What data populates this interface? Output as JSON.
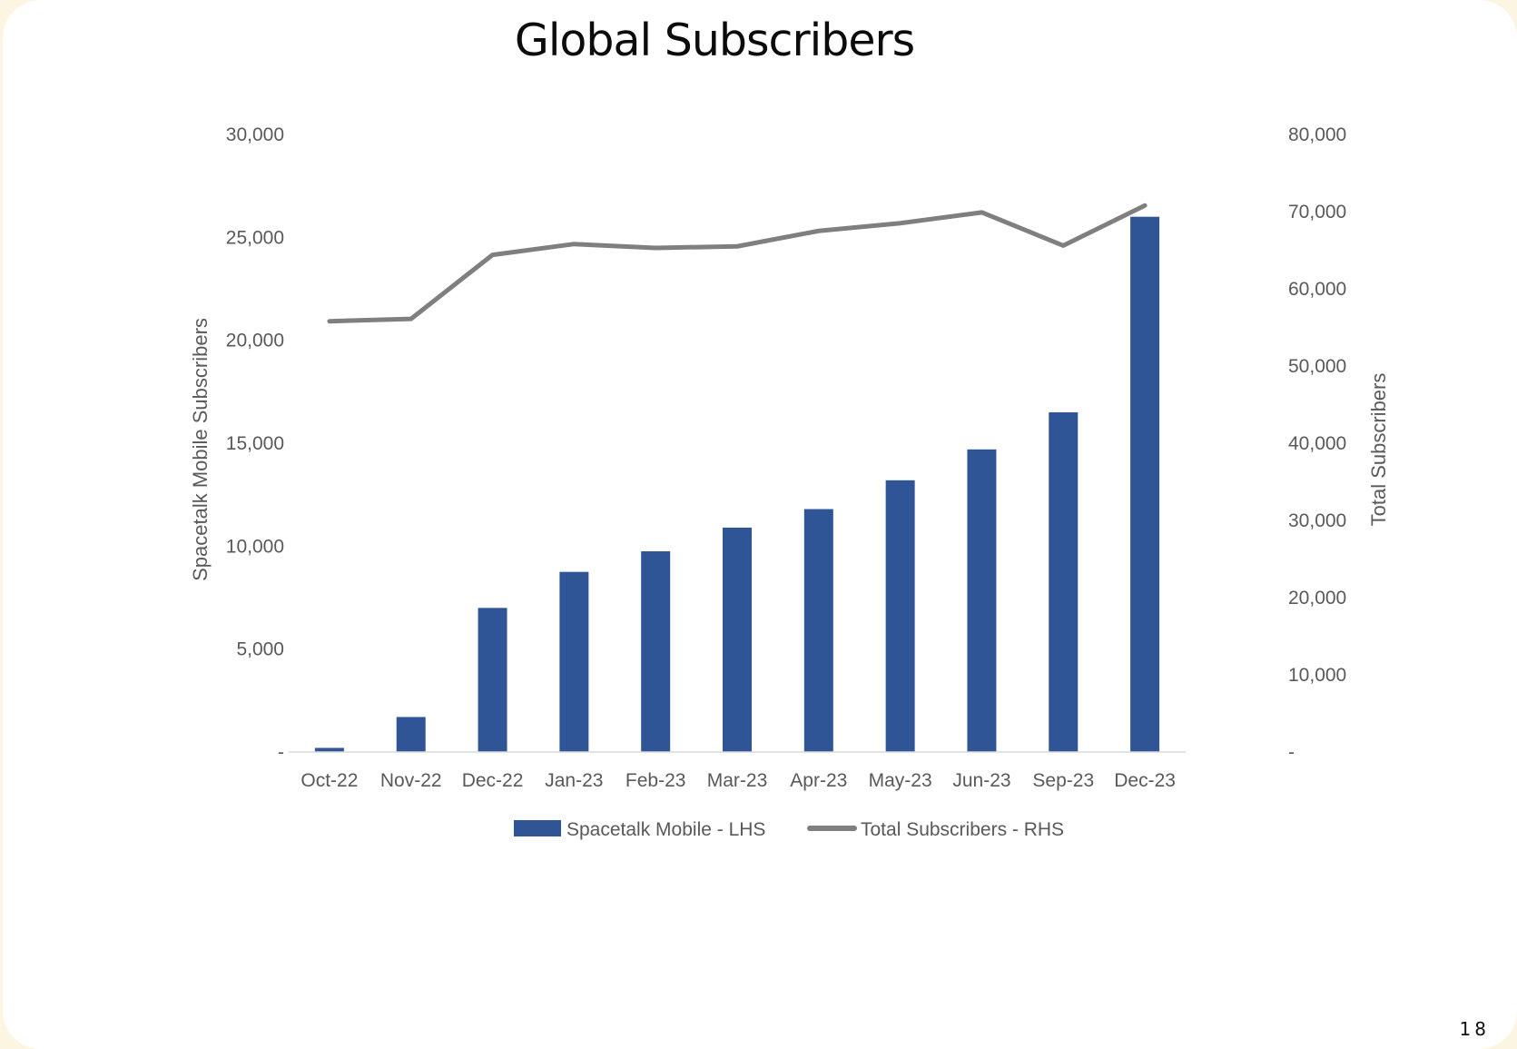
{
  "slide": {
    "title": "Global Subscribers",
    "page_number": "18"
  },
  "colors": {
    "bar": "#2f5597",
    "line": "#7f7f7f",
    "axis_text": "#595959",
    "background": "#fbf5e1"
  },
  "chart_data": {
    "type": "bar",
    "title": "Global Subscribers",
    "categories": [
      "Oct-22",
      "Nov-22",
      "Dec-22",
      "Jan-23",
      "Feb-23",
      "Mar-23",
      "Apr-23",
      "May-23",
      "Jun-23",
      "Sep-23",
      "Dec-23"
    ],
    "series": [
      {
        "name": "Spacetalk Mobile - LHS",
        "type": "bar",
        "axis": "left",
        "values": [
          200,
          1700,
          7000,
          8750,
          9750,
          10900,
          11800,
          13200,
          14700,
          16500,
          26000
        ]
      },
      {
        "name": "Total Subscribers - RHS",
        "type": "line",
        "axis": "right",
        "values": [
          55800,
          56100,
          64400,
          65800,
          65300,
          65500,
          67500,
          68500,
          69900,
          65600,
          70800
        ]
      }
    ],
    "ylabel": "Spacetalk Mobile Subscribers",
    "y2label": "Total Subscribers",
    "ylim": [
      0,
      30000
    ],
    "y2lim": [
      0,
      80000
    ],
    "yticks": [
      "-",
      "5,000",
      "10,000",
      "15,000",
      "20,000",
      "25,000",
      "30,000"
    ],
    "y2ticks": [
      "-",
      "10,000",
      "20,000",
      "30,000",
      "40,000",
      "50,000",
      "60,000",
      "70,000",
      "80,000"
    ],
    "grid": false,
    "legend_position": "bottom"
  }
}
